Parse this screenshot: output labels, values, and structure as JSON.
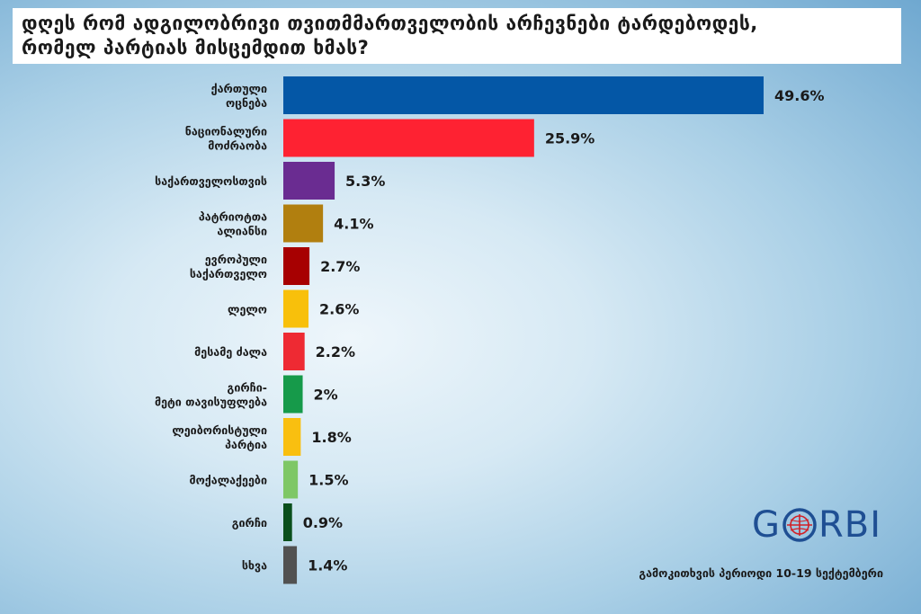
{
  "title": {
    "line1": "დღეს რომ ადგილობრივი თვითმმართველობის არჩევნები ტარდებოდეს,",
    "line2": "რომელ პარტიას მისცემდით ხმას?"
  },
  "chart_data": {
    "type": "bar",
    "orientation": "horizontal",
    "categories": [
      [
        "ქართული",
        "ოცნება"
      ],
      [
        "ნაციონალური",
        "მოძრაობა"
      ],
      [
        "საქართველოსთვის"
      ],
      [
        "პატრიოტთა",
        "ალიანსი"
      ],
      [
        "ევროპული",
        "საქართველო"
      ],
      [
        "ლელო"
      ],
      [
        "მესამე ძალა"
      ],
      [
        "გირჩი-",
        "მეტი თავისუფლება"
      ],
      [
        "ლეიბორისტული",
        "პარტია"
      ],
      [
        "მოქალაქეები"
      ],
      [
        "გირჩი"
      ],
      [
        "სხვა"
      ]
    ],
    "values": [
      49.6,
      25.9,
      5.3,
      4.1,
      2.7,
      2.6,
      2.2,
      2,
      1.8,
      1.5,
      0.9,
      1.4
    ],
    "value_labels": [
      "49.6%",
      "25.9%",
      "5.3%",
      "4.1%",
      "2.7%",
      "2.6%",
      "2.2%",
      "2%",
      "1.8%",
      "1.5%",
      "0.9%",
      "1.4%"
    ],
    "colors": [
      "#0457a6",
      "#fe2232",
      "#6a2c91",
      "#b17f0f",
      "#a70001",
      "#f8c00b",
      "#ee2a33",
      "#169a4a",
      "#f9bf10",
      "#7ec766",
      "#0a4f1c",
      "#515151"
    ],
    "xlim": [
      0,
      49.6
    ],
    "grid": false,
    "legend": "none"
  },
  "logo": {
    "prefix": "G",
    "suffix": "RBI"
  },
  "footer": "გამოკითხვის პერიოდი 10-19 სექტემბერი"
}
